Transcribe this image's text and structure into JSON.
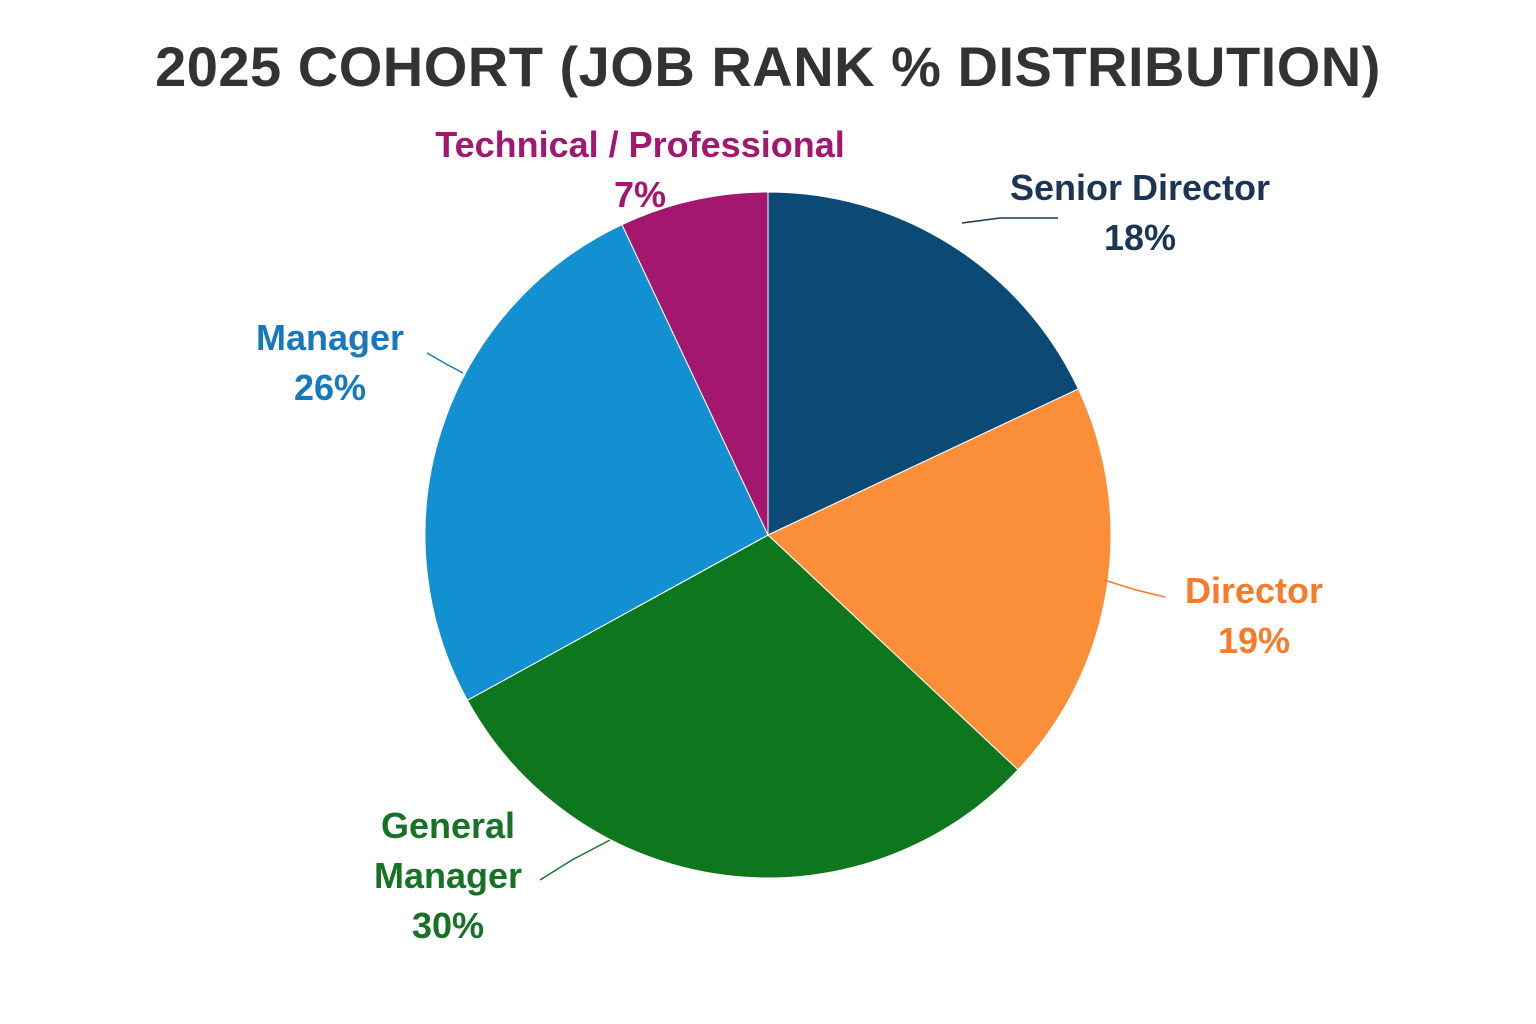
{
  "chart_data": {
    "type": "pie",
    "title": "2025 COHORT (JOB RANK % DISTRIBUTION)",
    "start_angle_deg": 0,
    "direction": "clockwise",
    "slices": [
      {
        "id": "senior-director",
        "lines": [
          "Senior Director"
        ],
        "value": 18,
        "value_label": "18%",
        "color": "#0B4A75",
        "label_color": "#1B3554"
      },
      {
        "id": "director",
        "lines": [
          "Director"
        ],
        "value": 19,
        "value_label": "19%",
        "color": "#FB8E38",
        "label_color": "#F77B2A"
      },
      {
        "id": "general-manager",
        "lines": [
          "General",
          "Manager"
        ],
        "value": 30,
        "value_label": "30%",
        "color": "#0E771E",
        "label_color": "#167325"
      },
      {
        "id": "manager",
        "lines": [
          "Manager"
        ],
        "value": 26,
        "value_label": "26%",
        "color": "#1390D1",
        "label_color": "#1679BE"
      },
      {
        "id": "technical-professional",
        "lines": [
          "Technical / Professional"
        ],
        "value": 7,
        "value_label": "7%",
        "color": "#A3176F",
        "label_color": "#A3176F"
      }
    ]
  }
}
